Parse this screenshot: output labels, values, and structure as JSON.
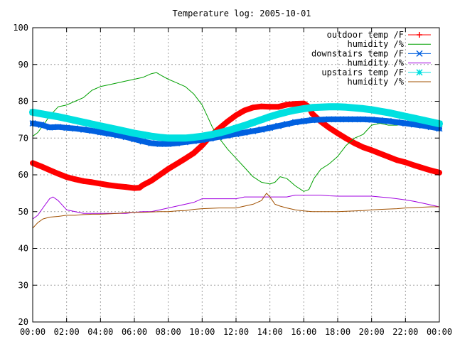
{
  "chart_data": {
    "type": "line",
    "title": "Temperature log: 2005-10-01",
    "xlabel": "",
    "ylabel": "",
    "xlim": [
      0,
      24
    ],
    "ylim": [
      20,
      100
    ],
    "x_ticks": [
      "00:00",
      "02:00",
      "04:00",
      "06:00",
      "08:00",
      "10:00",
      "12:00",
      "14:00",
      "16:00",
      "18:00",
      "20:00",
      "22:00",
      "00:00"
    ],
    "y_ticks": [
      "20",
      "30",
      "40",
      "50",
      "60",
      "70",
      "80",
      "90",
      "100"
    ],
    "grid": true,
    "legend_position": "top-right",
    "series": [
      {
        "name": "outdoor temp /F",
        "color": "#ff0000",
        "marker": "plus",
        "points": [
          [
            0,
            63.2
          ],
          [
            0.5,
            62.3
          ],
          [
            1,
            61.3
          ],
          [
            1.5,
            60.3
          ],
          [
            2,
            59.4
          ],
          [
            2.5,
            58.8
          ],
          [
            3,
            58.3
          ],
          [
            3.5,
            58.0
          ],
          [
            4,
            57.6
          ],
          [
            4.5,
            57.2
          ],
          [
            5,
            56.9
          ],
          [
            5.5,
            56.7
          ],
          [
            6,
            56.4
          ],
          [
            6.3,
            56.5
          ],
          [
            6.5,
            57.2
          ],
          [
            7,
            58.4
          ],
          [
            7.5,
            60.0
          ],
          [
            8,
            61.6
          ],
          [
            8.5,
            63.0
          ],
          [
            9,
            64.4
          ],
          [
            9.5,
            65.9
          ],
          [
            10,
            68.0
          ],
          [
            10.5,
            70.6
          ],
          [
            11,
            72.6
          ],
          [
            11.5,
            74.5
          ],
          [
            12,
            76.2
          ],
          [
            12.5,
            77.5
          ],
          [
            13,
            78.3
          ],
          [
            13.5,
            78.6
          ],
          [
            14,
            78.5
          ],
          [
            14.5,
            78.5
          ],
          [
            15,
            79.1
          ],
          [
            15.5,
            79.3
          ],
          [
            16,
            79.4
          ],
          [
            16.3,
            78.5
          ],
          [
            16.5,
            76.6
          ],
          [
            17,
            74.5
          ],
          [
            17.5,
            72.8
          ],
          [
            18,
            71.3
          ],
          [
            18.5,
            69.9
          ],
          [
            19,
            68.6
          ],
          [
            19.5,
            67.5
          ],
          [
            20,
            66.7
          ],
          [
            20.5,
            65.8
          ],
          [
            21,
            64.9
          ],
          [
            21.5,
            64.0
          ],
          [
            22,
            63.4
          ],
          [
            22.5,
            62.6
          ],
          [
            23,
            61.9
          ],
          [
            23.5,
            61.2
          ],
          [
            24,
            60.6
          ]
        ]
      },
      {
        "name": "humidity /%",
        "color": "#00a000",
        "marker": "none",
        "points": [
          [
            0,
            70.5
          ],
          [
            0.3,
            71.5
          ],
          [
            0.7,
            74
          ],
          [
            1,
            76
          ],
          [
            1.5,
            78.5
          ],
          [
            2,
            79
          ],
          [
            2.5,
            80
          ],
          [
            3,
            81
          ],
          [
            3.5,
            83
          ],
          [
            4,
            84
          ],
          [
            4.5,
            84.5
          ],
          [
            5,
            85
          ],
          [
            5.5,
            85.5
          ],
          [
            6,
            86
          ],
          [
            6.5,
            86.5
          ],
          [
            7,
            87.5
          ],
          [
            7.3,
            87.8
          ],
          [
            7.6,
            87
          ],
          [
            8,
            86
          ],
          [
            8.5,
            85
          ],
          [
            9,
            84
          ],
          [
            9.5,
            82
          ],
          [
            10,
            79
          ],
          [
            10.3,
            76
          ],
          [
            10.6,
            73
          ],
          [
            11,
            70
          ],
          [
            11.5,
            67
          ],
          [
            12,
            64.5
          ],
          [
            12.5,
            62
          ],
          [
            13,
            59.5
          ],
          [
            13.5,
            58
          ],
          [
            14,
            57.5
          ],
          [
            14.3,
            58
          ],
          [
            14.6,
            59.5
          ],
          [
            15,
            59
          ],
          [
            15.5,
            57
          ],
          [
            16,
            55.5
          ],
          [
            16.3,
            56
          ],
          [
            16.6,
            59
          ],
          [
            17,
            61.5
          ],
          [
            17.5,
            63
          ],
          [
            18,
            65
          ],
          [
            18.5,
            68
          ],
          [
            19,
            70
          ],
          [
            19.5,
            71
          ],
          [
            20,
            73.5
          ],
          [
            20.5,
            74
          ],
          [
            21,
            73.5
          ],
          [
            21.5,
            73.5
          ],
          [
            22,
            74
          ],
          [
            22.5,
            74
          ],
          [
            23,
            73.5
          ],
          [
            23.5,
            73
          ],
          [
            24,
            72.5
          ]
        ]
      },
      {
        "name": "downstairs temp /F",
        "color": "#0060e0",
        "marker": "x",
        "points": [
          [
            0,
            74.0
          ],
          [
            0.5,
            73.6
          ],
          [
            1,
            72.9
          ],
          [
            1.5,
            73.0
          ],
          [
            2,
            72.8
          ],
          [
            2.5,
            72.6
          ],
          [
            3,
            72.3
          ],
          [
            3.5,
            72.0
          ],
          [
            4,
            71.6
          ],
          [
            4.5,
            71.2
          ],
          [
            5,
            70.8
          ],
          [
            5.5,
            70.3
          ],
          [
            6,
            69.7
          ],
          [
            6.5,
            69.1
          ],
          [
            7,
            68.6
          ],
          [
            7.5,
            68.4
          ],
          [
            8,
            68.4
          ],
          [
            8.5,
            68.6
          ],
          [
            9,
            68.9
          ],
          [
            9.5,
            69.2
          ],
          [
            10,
            69.5
          ],
          [
            10.5,
            69.9
          ],
          [
            11,
            70.3
          ],
          [
            11.5,
            70.7
          ],
          [
            12,
            71.1
          ],
          [
            12.5,
            71.5
          ],
          [
            13,
            71.9
          ],
          [
            13.5,
            72.3
          ],
          [
            14,
            72.8
          ],
          [
            14.5,
            73.3
          ],
          [
            15,
            73.8
          ],
          [
            15.5,
            74.3
          ],
          [
            16,
            74.6
          ],
          [
            16.5,
            74.9
          ],
          [
            17,
            75.0
          ],
          [
            17.5,
            75.1
          ],
          [
            18,
            75.1
          ],
          [
            18.5,
            75.1
          ],
          [
            19,
            75.1
          ],
          [
            19.5,
            75.1
          ],
          [
            20,
            75.0
          ],
          [
            20.5,
            74.8
          ],
          [
            21,
            74.6
          ],
          [
            21.5,
            74.3
          ],
          [
            22,
            74.0
          ],
          [
            22.5,
            73.7
          ],
          [
            23,
            73.4
          ],
          [
            23.5,
            73.0
          ],
          [
            24,
            72.6
          ]
        ]
      },
      {
        "name": "humidity /%",
        "color": "#a000e0",
        "marker": "none",
        "points": [
          [
            0,
            48
          ],
          [
            0.3,
            49
          ],
          [
            0.6,
            51
          ],
          [
            1,
            53.5
          ],
          [
            1.2,
            54
          ],
          [
            1.5,
            53
          ],
          [
            2,
            50.5
          ],
          [
            2.5,
            50
          ],
          [
            3,
            49.5
          ],
          [
            3.5,
            49.5
          ],
          [
            4,
            49.5
          ],
          [
            4.5,
            49.5
          ],
          [
            5,
            49.5
          ],
          [
            5.5,
            49.5
          ],
          [
            6,
            49.8
          ],
          [
            6.5,
            50
          ],
          [
            7,
            50
          ],
          [
            7.5,
            50.5
          ],
          [
            8,
            51
          ],
          [
            8.5,
            51.5
          ],
          [
            9,
            52
          ],
          [
            9.5,
            52.5
          ],
          [
            10,
            53.5
          ],
          [
            10.5,
            53.5
          ],
          [
            11,
            53.5
          ],
          [
            11.5,
            53.5
          ],
          [
            12,
            53.5
          ],
          [
            12.5,
            54
          ],
          [
            13,
            54
          ],
          [
            13.5,
            54
          ],
          [
            14,
            54
          ],
          [
            14.5,
            54
          ],
          [
            15,
            54
          ],
          [
            15.5,
            54.5
          ],
          [
            16,
            54.5
          ],
          [
            16.5,
            54.5
          ],
          [
            17,
            54.5
          ],
          [
            17.5,
            54.3
          ],
          [
            18,
            54.2
          ],
          [
            18.5,
            54.2
          ],
          [
            19,
            54.2
          ],
          [
            19.5,
            54.2
          ],
          [
            20,
            54.2
          ],
          [
            20.5,
            54
          ],
          [
            21,
            53.8
          ],
          [
            21.5,
            53.5
          ],
          [
            22,
            53.2
          ],
          [
            22.5,
            52.8
          ],
          [
            23,
            52.3
          ],
          [
            23.5,
            51.8
          ],
          [
            24,
            51.3
          ]
        ]
      },
      {
        "name": "upstairs temp /F",
        "color": "#00e0e0",
        "marker": "star",
        "points": [
          [
            0,
            77.0
          ],
          [
            0.5,
            76.6
          ],
          [
            1,
            76.2
          ],
          [
            1.5,
            75.8
          ],
          [
            2,
            75.3
          ],
          [
            2.5,
            74.8
          ],
          [
            3,
            74.3
          ],
          [
            3.5,
            73.8
          ],
          [
            4,
            73.3
          ],
          [
            4.5,
            72.8
          ],
          [
            5,
            72.3
          ],
          [
            5.5,
            71.8
          ],
          [
            6,
            71.3
          ],
          [
            6.5,
            70.9
          ],
          [
            7,
            70.5
          ],
          [
            7.5,
            70.2
          ],
          [
            8,
            70.0
          ],
          [
            8.5,
            70.0
          ],
          [
            9,
            70.0
          ],
          [
            9.5,
            70.2
          ],
          [
            10,
            70.5
          ],
          [
            10.5,
            70.9
          ],
          [
            11,
            71.4
          ],
          [
            11.5,
            72.0
          ],
          [
            12,
            72.7
          ],
          [
            12.5,
            73.4
          ],
          [
            13,
            74.2
          ],
          [
            13.5,
            75.0
          ],
          [
            14,
            75.8
          ],
          [
            14.5,
            76.5
          ],
          [
            15,
            77.1
          ],
          [
            15.5,
            77.6
          ],
          [
            16,
            78.0
          ],
          [
            16.5,
            78.3
          ],
          [
            17,
            78.4
          ],
          [
            17.5,
            78.5
          ],
          [
            18,
            78.5
          ],
          [
            18.5,
            78.4
          ],
          [
            19,
            78.2
          ],
          [
            19.5,
            78.0
          ],
          [
            20,
            77.7
          ],
          [
            20.5,
            77.3
          ],
          [
            21,
            76.9
          ],
          [
            21.5,
            76.4
          ],
          [
            22,
            75.9
          ],
          [
            22.5,
            75.4
          ],
          [
            23,
            74.9
          ],
          [
            23.5,
            74.4
          ],
          [
            24,
            73.9
          ]
        ]
      },
      {
        "name": "humidity /%",
        "color": "#a05000",
        "marker": "none",
        "points": [
          [
            0,
            45.5
          ],
          [
            0.3,
            47
          ],
          [
            0.6,
            48
          ],
          [
            1,
            48.5
          ],
          [
            1.5,
            48.7
          ],
          [
            2,
            49
          ],
          [
            2.5,
            49
          ],
          [
            3,
            49.2
          ],
          [
            3.5,
            49.3
          ],
          [
            4,
            49.3
          ],
          [
            4.5,
            49.4
          ],
          [
            5,
            49.5
          ],
          [
            5.5,
            49.7
          ],
          [
            6,
            49.8
          ],
          [
            6.5,
            49.8
          ],
          [
            7,
            49.9
          ],
          [
            7.5,
            50
          ],
          [
            8,
            50
          ],
          [
            8.5,
            50.2
          ],
          [
            9,
            50.3
          ],
          [
            9.5,
            50.6
          ],
          [
            10,
            50.8
          ],
          [
            10.5,
            50.9
          ],
          [
            11,
            51
          ],
          [
            11.5,
            51
          ],
          [
            12,
            51
          ],
          [
            12.5,
            51.5
          ],
          [
            13,
            52
          ],
          [
            13.5,
            53
          ],
          [
            13.8,
            55
          ],
          [
            14,
            54
          ],
          [
            14.3,
            52
          ],
          [
            14.6,
            51.5
          ],
          [
            15,
            51
          ],
          [
            15.5,
            50.5
          ],
          [
            16,
            50.2
          ],
          [
            16.5,
            50
          ],
          [
            17,
            50
          ],
          [
            17.5,
            50
          ],
          [
            18,
            50
          ],
          [
            18.5,
            50.1
          ],
          [
            19,
            50.2
          ],
          [
            19.5,
            50.3
          ],
          [
            20,
            50.5
          ],
          [
            20.5,
            50.6
          ],
          [
            21,
            50.7
          ],
          [
            21.5,
            50.8
          ],
          [
            22,
            51
          ],
          [
            22.5,
            51.1
          ],
          [
            23,
            51.2
          ],
          [
            23.5,
            51.3
          ],
          [
            24,
            51.3
          ]
        ]
      }
    ]
  }
}
